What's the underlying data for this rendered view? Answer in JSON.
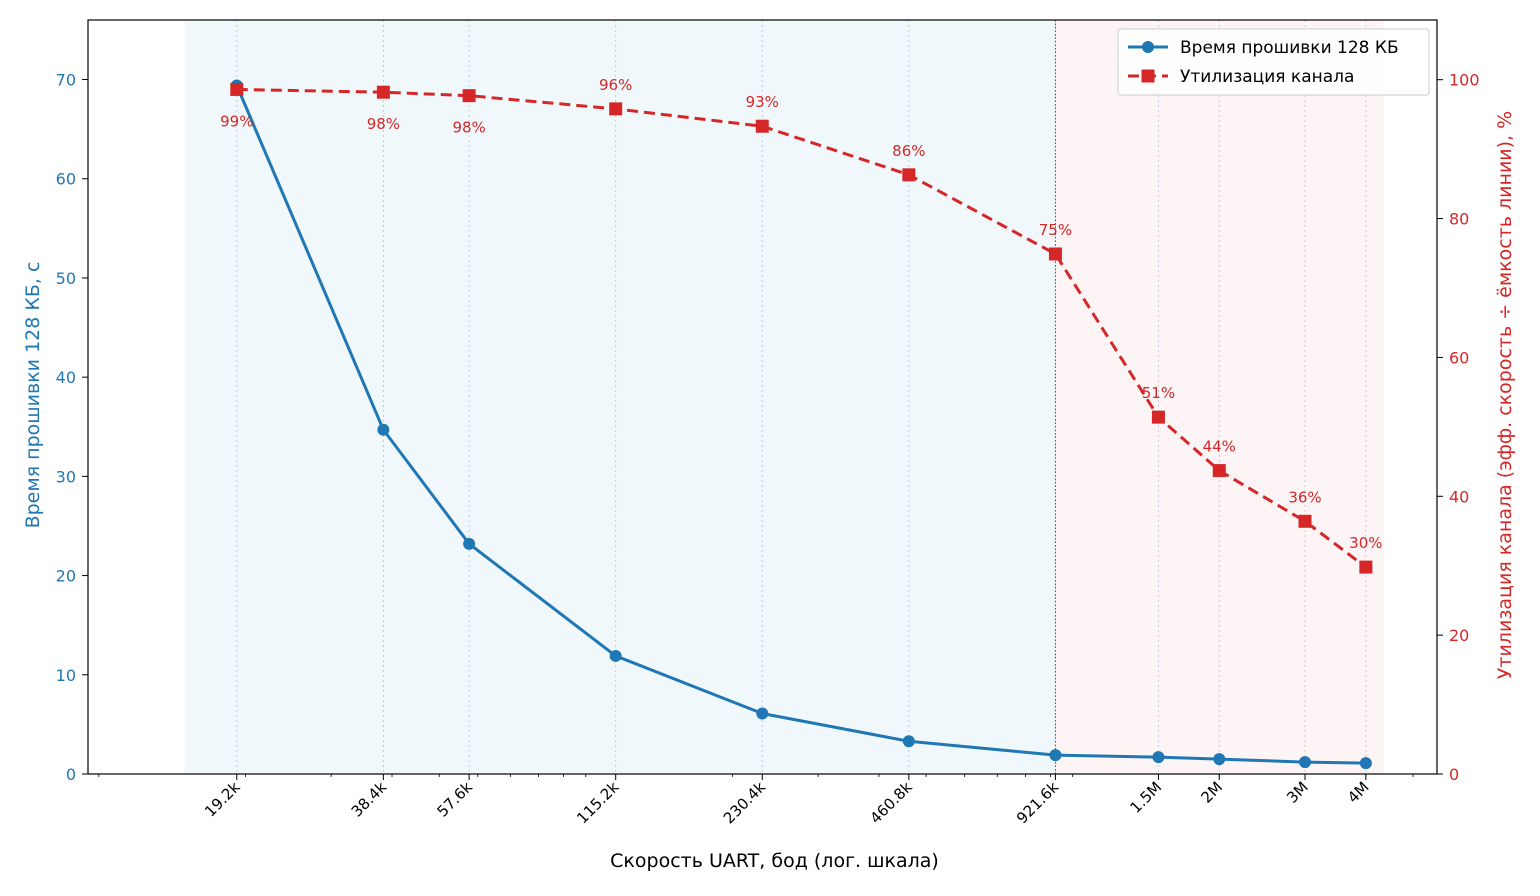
{
  "chart_data": {
    "type": "line",
    "title": "",
    "xlabel": "Скорость UART, бод (лог. шкала)",
    "ylabel_left": "Время прошивки 128 КБ, с",
    "ylabel_right": "Утилизация канала (эфф. скорость ÷ ёмкость линии), %",
    "x_scale": "log",
    "x": [
      19200,
      38400,
      57600,
      115200,
      230400,
      460800,
      921600,
      1500000,
      2000000,
      3000000,
      4000000
    ],
    "x_tick_labels": [
      "19.2k",
      "38.4k",
      "57.6k",
      "115.2k",
      "230.4k",
      "460.8k",
      "921.6k",
      "1.5M",
      "2M",
      "3M",
      "4M"
    ],
    "xlim": [
      9500,
      5600000
    ],
    "ylim_left": [
      0,
      76
    ],
    "ylim_right": [
      0,
      108.6
    ],
    "yticks_left": [
      0,
      10,
      20,
      30,
      40,
      50,
      60,
      70
    ],
    "yticks_right": [
      0,
      20,
      40,
      60,
      80,
      100
    ],
    "grid": "vertical-dotted",
    "legend": "top-right",
    "shaded_regions": [
      {
        "from": 15000,
        "to": 921600,
        "color": "#e8f3f9"
      },
      {
        "from": 921600,
        "to": 4350000,
        "color": "#fcecee"
      }
    ],
    "vline": 921600,
    "series": [
      {
        "name": "Время прошивки 128 КБ",
        "axis": "left",
        "color": "#1f77b4",
        "marker": "circle",
        "style": "solid",
        "values": [
          69.4,
          34.7,
          23.2,
          11.9,
          6.1,
          3.3,
          1.9,
          1.7,
          1.5,
          1.2,
          1.1
        ]
      },
      {
        "name": "Утилизация канала",
        "axis": "right",
        "color": "#d62728",
        "marker": "square",
        "style": "dashed",
        "values": [
          98.6,
          98.2,
          97.7,
          95.8,
          93.3,
          86.3,
          74.9,
          51.4,
          43.7,
          36.4,
          29.8
        ],
        "labels": [
          "99%",
          "98%",
          "98%",
          "96%",
          "93%",
          "86%",
          "75%",
          "51%",
          "44%",
          "36%",
          "30%"
        ],
        "label_pos": [
          "below",
          "below",
          "below",
          "above",
          "above",
          "above",
          "above",
          "above",
          "above",
          "above",
          "above"
        ]
      }
    ]
  }
}
